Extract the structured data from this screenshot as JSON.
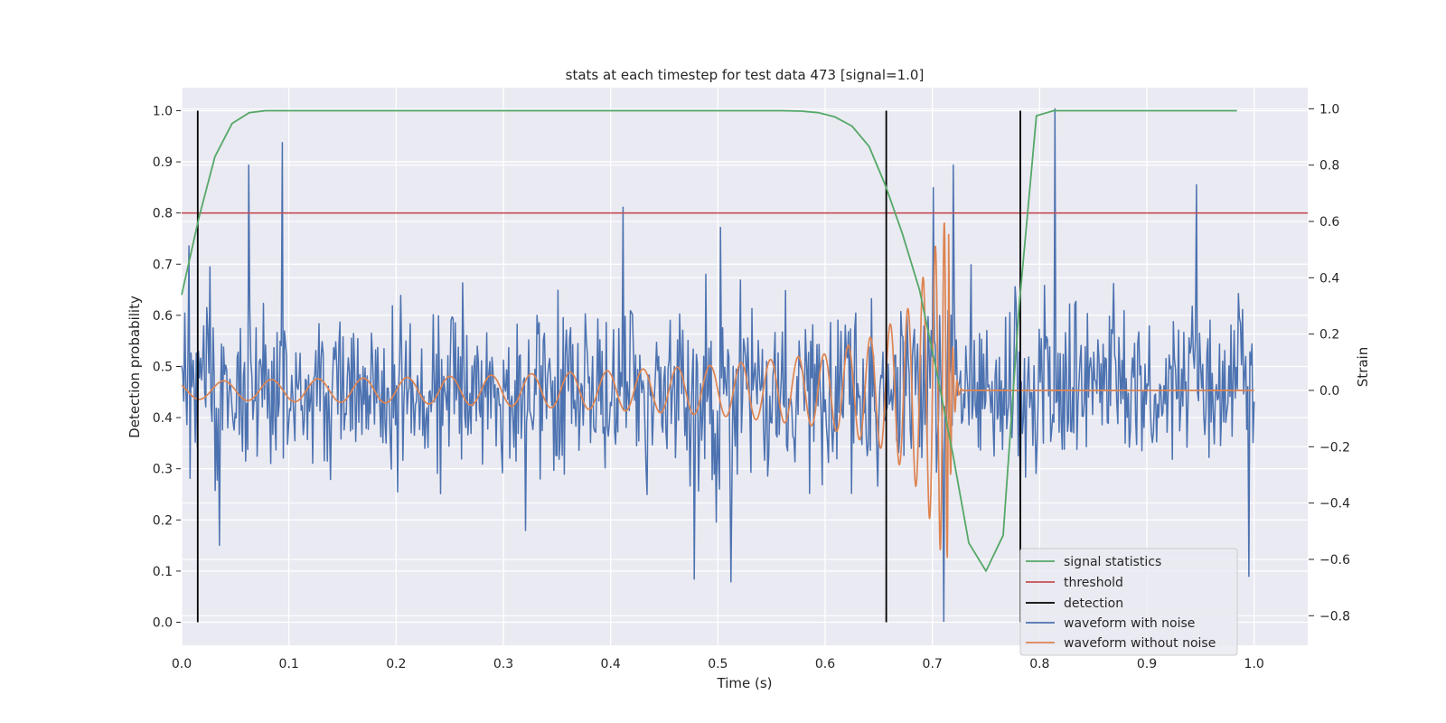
{
  "chart_data": {
    "type": "line",
    "title": "stats at each timestep for test data 473 [signal=1.0]",
    "xlabel": "Time (s)",
    "ylabel": "Detection probability",
    "y2label": "Strain",
    "xlim": [
      0.0,
      1.05
    ],
    "ylim": [
      -0.045,
      1.045
    ],
    "y2lim": [
      -0.905,
      1.075
    ],
    "xticks": [
      0.0,
      0.1,
      0.2,
      0.3,
      0.4,
      0.5,
      0.6,
      0.7,
      0.8,
      0.9,
      1.0
    ],
    "xtick_labels": [
      "0.0",
      "0.1",
      "0.2",
      "0.3",
      "0.4",
      "0.5",
      "0.6",
      "0.7",
      "0.8",
      "0.9",
      "1.0"
    ],
    "yticks": [
      0.0,
      0.1,
      0.2,
      0.3,
      0.4,
      0.5,
      0.6,
      0.7,
      0.8,
      0.9,
      1.0
    ],
    "ytick_labels": [
      "0.0",
      "0.1",
      "0.2",
      "0.3",
      "0.4",
      "0.5",
      "0.6",
      "0.7",
      "0.8",
      "0.9",
      "1.0"
    ],
    "y2ticks": [
      -0.8,
      -0.6,
      -0.4,
      -0.2,
      0.0,
      0.2,
      0.4,
      0.6,
      0.8,
      1.0
    ],
    "y2tick_labels": [
      "−0.8",
      "−0.6",
      "−0.4",
      "−0.2",
      "0.0",
      "0.2",
      "0.4",
      "0.6",
      "0.8",
      "1.0"
    ],
    "grid": true,
    "legend_position": "bottom-right",
    "legend": [
      "signal statistics",
      "threshold",
      "detection",
      "waveform with noise",
      "waveform without noise"
    ],
    "colors": {
      "signal_statistics": "#55a868",
      "threshold": "#c44e52",
      "detection": "#000000",
      "waveform_with_noise": "#4c72b0",
      "waveform_without_noise": "#dd8452",
      "plot_background": "#eaeaf2",
      "grid": "#ffffff"
    },
    "signal_statistics": {
      "x": [
        0.0,
        0.016,
        0.031,
        0.047,
        0.063,
        0.078,
        0.094,
        0.2,
        0.4,
        0.5,
        0.56,
        0.578,
        0.594,
        0.609,
        0.625,
        0.641,
        0.656,
        0.672,
        0.688,
        0.703,
        0.719,
        0.734,
        0.75,
        0.766,
        0.781,
        0.797,
        0.813,
        0.984
      ],
      "y": [
        0.64,
        0.79,
        0.91,
        0.975,
        0.996,
        1.0,
        1.0,
        1.0,
        1.0,
        1.0,
        1.0,
        0.999,
        0.996,
        0.988,
        0.97,
        0.93,
        0.855,
        0.76,
        0.65,
        0.5,
        0.33,
        0.155,
        0.1,
        0.17,
        0.62,
        0.99,
        1.0,
        1.0
      ]
    },
    "threshold": {
      "value": 0.8
    },
    "detections": [
      0.015,
      0.657,
      0.782
    ],
    "waveform_with_noise": {
      "t_start": 0.0,
      "t_end": 1.0,
      "seed": 473,
      "std": 0.16,
      "extremes": [
        {
          "x": 0.063,
          "y": 0.8
        },
        {
          "x": 0.094,
          "y": 0.88
        },
        {
          "x": 0.035,
          "y": -0.55
        },
        {
          "x": 0.412,
          "y": 0.65
        },
        {
          "x": 0.478,
          "y": -0.67
        },
        {
          "x": 0.512,
          "y": -0.68
        },
        {
          "x": 0.701,
          "y": 0.72
        },
        {
          "x": 0.719,
          "y": 0.8
        },
        {
          "x": 0.711,
          "y": -0.82
        },
        {
          "x": 0.814,
          "y": 1.0
        },
        {
          "x": 0.946,
          "y": 0.73
        },
        {
          "x": 0.995,
          "y": -0.66
        }
      ]
    },
    "waveform_without_noise": {
      "t_start": 0.0,
      "t_end": 1.0,
      "merger_time": 0.715,
      "envelope": [
        {
          "x": 0.0,
          "y": 0.03
        },
        {
          "x": 0.1,
          "y": 0.04
        },
        {
          "x": 0.2,
          "y": 0.045
        },
        {
          "x": 0.3,
          "y": 0.055
        },
        {
          "x": 0.4,
          "y": 0.07
        },
        {
          "x": 0.5,
          "y": 0.09
        },
        {
          "x": 0.6,
          "y": 0.13
        },
        {
          "x": 0.65,
          "y": 0.2
        },
        {
          "x": 0.68,
          "y": 0.3
        },
        {
          "x": 0.7,
          "y": 0.48
        },
        {
          "x": 0.71,
          "y": 0.6
        },
        {
          "x": 0.715,
          "y": 0.6
        },
        {
          "x": 0.73,
          "y": 0.0
        }
      ]
    }
  }
}
